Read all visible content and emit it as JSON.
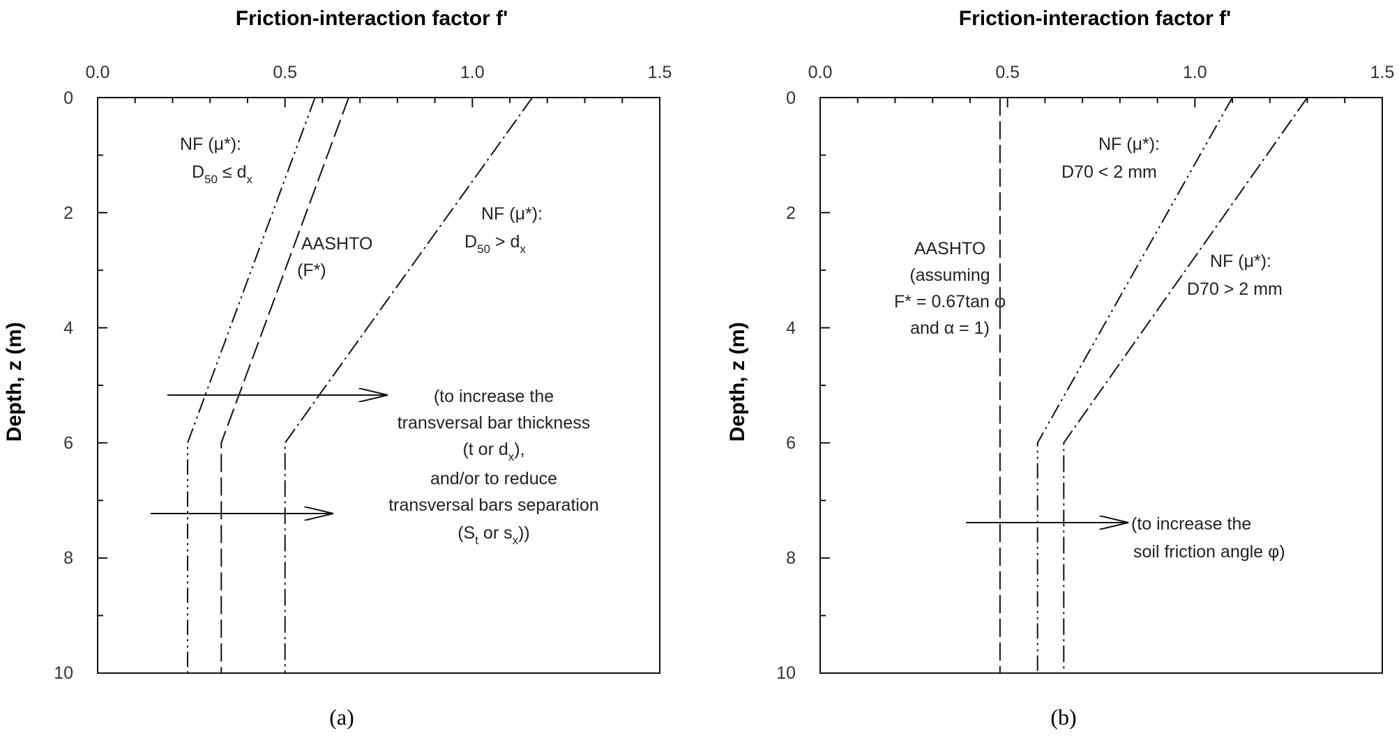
{
  "chart_data": [
    {
      "type": "line",
      "panel_label": "(a)",
      "title": "Friction-interaction factor f'",
      "xlabel": "Friction-interaction factor f'",
      "ylabel": "Depth, z (m)",
      "xlim": [
        0.0,
        1.5
      ],
      "ylim": [
        10,
        0
      ],
      "y_inverted": true,
      "x_axis_position": "top",
      "x_ticks": [
        "0.0",
        "0.5",
        "1.0",
        "1.5"
      ],
      "y_ticks": [
        "0",
        "2",
        "4",
        "6",
        "8",
        "10"
      ],
      "grid": false,
      "series": [
        {
          "name": "NF (μ*): D50 ≤ dx",
          "x": [
            0.58,
            0.24,
            0.24
          ],
          "y": [
            0,
            6,
            10
          ],
          "style": "dash-dot-dot"
        },
        {
          "name": "AASHTO (F*)",
          "x": [
            0.67,
            0.33,
            0.33
          ],
          "y": [
            0,
            6,
            10
          ],
          "style": "dashed"
        },
        {
          "name": "NF (μ*): D50 > dx",
          "x": [
            1.16,
            0.5,
            0.5
          ],
          "y": [
            0,
            6,
            10
          ],
          "style": "dash-dot"
        }
      ],
      "annotations": {
        "label_nf1_line1": "NF (μ*):",
        "label_nf1_d": "D",
        "label_nf1_sub": "50",
        "label_nf1_rest": " ≤ d",
        "label_nf1_sub2": "x",
        "label_aashto_1": "AASHTO",
        "label_aashto_2": "(F*)",
        "label_nf2_line1": "NF (μ*):",
        "label_nf2_d": "D",
        "label_nf2_sub": "50",
        "label_nf2_rest": " > d",
        "label_nf2_sub2": "x",
        "arrow_text_1": "(to increase the",
        "arrow_text_2": "transversal bar thickness",
        "arrow_text_3a": "(t or d",
        "arrow_text_3sub": "x",
        "arrow_text_3b": "),",
        "arrow_text_4": "and/or to reduce",
        "arrow_text_5": "transversal bars separation",
        "arrow_text_6a": "(S",
        "arrow_text_6sub": "t",
        "arrow_text_6b": " or s",
        "arrow_text_6sub2": "x",
        "arrow_text_6c": "))"
      }
    },
    {
      "type": "line",
      "panel_label": "(b)",
      "title": "Friction-interaction factor f'",
      "xlabel": "Friction-interaction factor f'",
      "ylabel": "Depth, z (m)",
      "xlim": [
        0.0,
        1.5
      ],
      "ylim": [
        10,
        0
      ],
      "y_inverted": true,
      "x_axis_position": "top",
      "x_ticks": [
        "0.0",
        "0.5",
        "1.0",
        "1.5"
      ],
      "y_ticks": [
        "0",
        "2",
        "4",
        "6",
        "8",
        "10"
      ],
      "grid": false,
      "series": [
        {
          "name": "AASHTO (assuming F* = 0.67tanφ and α = 1)",
          "x": [
            0.48,
            0.48
          ],
          "y": [
            0,
            10
          ],
          "style": "dashed"
        },
        {
          "name": "NF (μ*): D70 < 2 mm",
          "x": [
            1.1,
            0.58,
            0.58
          ],
          "y": [
            0,
            6,
            10
          ],
          "style": "dash-dot-dot"
        },
        {
          "name": "NF (μ*): D70 > 2 mm",
          "x": [
            1.3,
            0.65,
            0.65
          ],
          "y": [
            0,
            6,
            10
          ],
          "style": "dash-dot"
        }
      ],
      "annotations": {
        "label_nf1_line1": "NF (μ*):",
        "label_nf1_line2": "D70 < 2 mm",
        "label_nf2_line1": "NF (μ*):",
        "label_nf2_line2": "D70 > 2 mm",
        "label_aashto_1": "AASHTO",
        "label_aashto_2": "(assuming",
        "label_aashto_3": "F* = 0.67tan φ",
        "label_aashto_4": "and α = 1)",
        "arrow_text_1": "(to increase the",
        "arrow_text_2": "soil friction angle φ)"
      }
    }
  ]
}
